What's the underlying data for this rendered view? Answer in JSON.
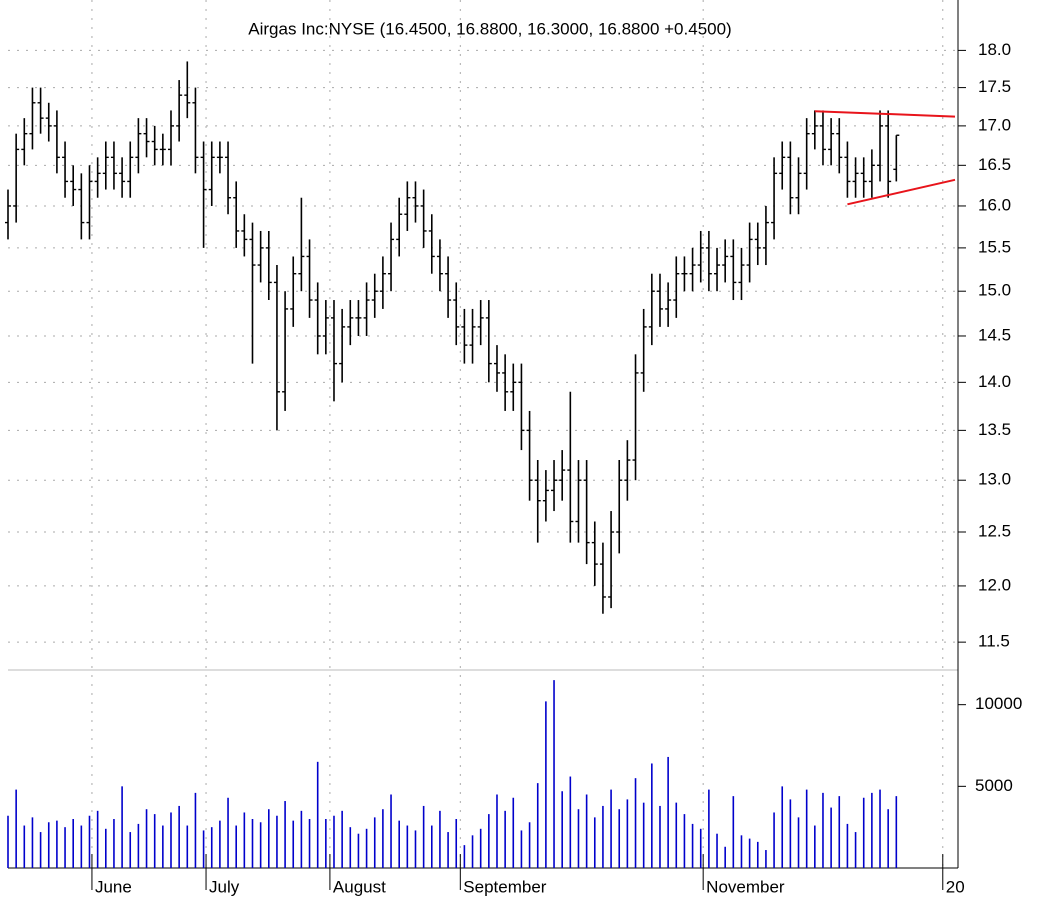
{
  "chart_data": {
    "type": "ohlc",
    "subtitle": "Airgas Inc:NYSE (16.4500, 16.8800, 16.3000, 16.8800 +0.4500)",
    "log_scale": true,
    "grid": true,
    "color": "#000000",
    "xlim": [
      0,
      116.2
    ],
    "xticks": [
      {
        "value": 10.3,
        "label": "June"
      },
      {
        "value": 24.3,
        "label": "July"
      },
      {
        "value": 39.5,
        "label": "August"
      },
      {
        "value": 55.5,
        "label": "September"
      },
      {
        "value": 85.3,
        "label": "November"
      },
      {
        "value": 114.7,
        "label": "20"
      }
    ],
    "ylim": [
      11.26,
      18.7
    ],
    "yticks": [
      {
        "value": 11.5,
        "label": "11.5"
      },
      {
        "value": 12,
        "label": "12.0"
      },
      {
        "value": 12.5,
        "label": "12.5"
      },
      {
        "value": 13,
        "label": "13.0"
      },
      {
        "value": 13.5,
        "label": "13.5"
      },
      {
        "value": 14,
        "label": "14.0"
      },
      {
        "value": 14.5,
        "label": "14.5"
      },
      {
        "value": 15,
        "label": "15.0"
      },
      {
        "value": 15.5,
        "label": "15.5"
      },
      {
        "value": 16,
        "label": "16.0"
      },
      {
        "value": 16.5,
        "label": "16.5"
      },
      {
        "value": 17,
        "label": "17.0"
      },
      {
        "value": 17.5,
        "label": "17.5"
      },
      {
        "value": 18,
        "label": "18.0"
      }
    ],
    "open": [
      15.8,
      16.0,
      16.7,
      16.9,
      17.3,
      17.1,
      17.0,
      16.6,
      16.3,
      16.2,
      15.8,
      16.3,
      16.4,
      16.6,
      16.4,
      16.3,
      16.6,
      16.9,
      16.8,
      16.7,
      16.7,
      17.0,
      17.4,
      17.3,
      16.6,
      16.2,
      16.6,
      16.6,
      16.1,
      15.7,
      15.6,
      15.3,
      15.5,
      15.1,
      13.9,
      14.8,
      15.2,
      15.4,
      14.9,
      14.5,
      14.7,
      14.2,
      14.6,
      14.7,
      14.7,
      14.9,
      15.0,
      15.2,
      15.6,
      15.9,
      16.1,
      16.0,
      15.7,
      15.4,
      15.2,
      14.9,
      14.6,
      14.4,
      14.6,
      14.7,
      14.2,
      14.1,
      13.9,
      14.0,
      13.5,
      13.0,
      12.8,
      12.9,
      13.0,
      13.1,
      12.6,
      13.0,
      12.4,
      12.2,
      11.9,
      12.5,
      13.0,
      13.2,
      14.1,
      14.6,
      15.0,
      14.8,
      14.9,
      15.2,
      15.2,
      15.3,
      15.5,
      15.2,
      15.3,
      15.4,
      15.1,
      15.3,
      15.6,
      15.5,
      15.8,
      16.4,
      16.6,
      16.1,
      16.4,
      16.9,
      17.0,
      16.7,
      16.9,
      16.6,
      16.3,
      16.4,
      16.3,
      16.5,
      17.0,
      16.45
    ],
    "high": [
      16.2,
      16.9,
      17.1,
      17.5,
      17.5,
      17.3,
      17.2,
      16.8,
      16.5,
      16.4,
      16.5,
      16.6,
      16.8,
      16.8,
      16.6,
      16.8,
      17.1,
      17.1,
      17.0,
      16.9,
      17.2,
      17.6,
      17.85,
      17.5,
      16.8,
      16.8,
      16.8,
      16.8,
      16.3,
      15.9,
      15.8,
      15.7,
      15.7,
      15.3,
      15.0,
      15.4,
      16.1,
      15.6,
      15.1,
      14.9,
      14.9,
      14.8,
      14.9,
      14.9,
      15.1,
      15.2,
      15.4,
      15.8,
      16.1,
      16.3,
      16.3,
      16.2,
      15.9,
      15.6,
      15.4,
      15.1,
      14.8,
      14.8,
      14.9,
      14.9,
      14.4,
      14.3,
      14.2,
      14.2,
      13.7,
      13.2,
      13.1,
      13.2,
      13.3,
      13.9,
      13.2,
      13.2,
      12.6,
      12.4,
      12.7,
      13.2,
      13.4,
      14.3,
      14.8,
      15.2,
      15.2,
      15.1,
      15.4,
      15.4,
      15.5,
      15.7,
      15.7,
      15.5,
      15.6,
      15.6,
      15.5,
      15.8,
      15.8,
      16.0,
      16.6,
      16.8,
      16.8,
      16.6,
      17.1,
      17.2,
      17.2,
      17.1,
      17.1,
      16.8,
      16.6,
      16.6,
      16.7,
      17.2,
      17.2,
      16.88
    ],
    "low": [
      15.6,
      15.8,
      16.5,
      16.7,
      16.9,
      16.8,
      16.4,
      16.1,
      16.0,
      15.6,
      15.6,
      16.1,
      16.2,
      16.2,
      16.1,
      16.1,
      16.4,
      16.6,
      16.5,
      16.5,
      16.5,
      16.8,
      17.1,
      16.4,
      15.5,
      16.0,
      16.4,
      15.9,
      15.5,
      15.4,
      14.2,
      15.1,
      14.9,
      13.5,
      13.7,
      14.6,
      15.0,
      14.7,
      14.3,
      14.3,
      13.8,
      14.0,
      14.4,
      14.5,
      14.5,
      14.7,
      14.8,
      15.0,
      15.4,
      15.7,
      15.8,
      15.5,
      15.2,
      15.0,
      14.7,
      14.4,
      14.2,
      14.2,
      14.4,
      14.0,
      13.9,
      13.7,
      13.7,
      13.3,
      12.8,
      12.4,
      12.6,
      12.7,
      12.8,
      12.4,
      12.4,
      12.2,
      12.0,
      11.75,
      11.8,
      12.3,
      12.8,
      13.0,
      13.9,
      14.4,
      14.6,
      14.6,
      14.7,
      15.0,
      15.0,
      15.1,
      15.0,
      15.0,
      15.1,
      14.9,
      14.9,
      15.1,
      15.3,
      15.3,
      15.6,
      16.2,
      15.9,
      15.9,
      16.2,
      16.7,
      16.5,
      16.5,
      16.4,
      16.1,
      16.1,
      16.1,
      16.1,
      16.3,
      16.1,
      16.3
    ],
    "close": [
      16.0,
      16.7,
      16.9,
      17.3,
      17.1,
      17.0,
      16.6,
      16.3,
      16.2,
      15.8,
      16.3,
      16.4,
      16.6,
      16.4,
      16.3,
      16.6,
      16.9,
      16.8,
      16.7,
      16.7,
      17.0,
      17.4,
      17.3,
      16.6,
      16.2,
      16.6,
      16.6,
      16.1,
      15.7,
      15.6,
      15.3,
      15.5,
      15.1,
      13.9,
      14.8,
      15.2,
      15.4,
      14.9,
      14.5,
      14.7,
      14.2,
      14.6,
      14.7,
      14.7,
      14.9,
      15.0,
      15.2,
      15.6,
      15.9,
      16.1,
      16.0,
      15.7,
      15.4,
      15.2,
      14.9,
      14.6,
      14.4,
      14.6,
      14.7,
      14.2,
      14.1,
      13.9,
      14.0,
      13.5,
      13.0,
      12.8,
      12.9,
      13.0,
      13.1,
      12.6,
      13.0,
      12.4,
      12.2,
      11.9,
      12.5,
      13.0,
      13.2,
      14.1,
      14.6,
      15.0,
      14.8,
      14.9,
      15.2,
      15.2,
      15.3,
      15.5,
      15.2,
      15.3,
      15.4,
      15.1,
      15.3,
      15.6,
      15.5,
      15.8,
      16.4,
      16.6,
      16.1,
      16.4,
      16.9,
      17.0,
      16.7,
      16.9,
      16.6,
      16.3,
      16.4,
      16.3,
      16.5,
      17.0,
      16.3,
      16.88
    ],
    "volume": [
      3200,
      4800,
      2600,
      3100,
      2200,
      2800,
      2900,
      2500,
      3000,
      2600,
      3200,
      3500,
      2400,
      3000,
      5000,
      2200,
      2700,
      3600,
      3300,
      2600,
      3400,
      3800,
      2600,
      4600,
      2300,
      2500,
      2900,
      4300,
      2600,
      3400,
      3000,
      2800,
      3600,
      3200,
      4100,
      2900,
      3500,
      3000,
      6500,
      3000,
      3200,
      3500,
      2500,
      2100,
      2400,
      3100,
      3600,
      4500,
      2900,
      2600,
      2300,
      3800,
      2600,
      3500,
      2200,
      3000,
      1400,
      2000,
      2400,
      3300,
      4500,
      3500,
      4300,
      2300,
      2800,
      5200,
      10200,
      11500,
      4700,
      5600,
      3600,
      4500,
      3100,
      3800,
      4800,
      3600,
      4200,
      5500,
      4000,
      6400,
      3800,
      6800,
      4000,
      3300,
      2700,
      2400,
      4800,
      2100,
      1300,
      4400,
      2000,
      1800,
      1600,
      1100,
      3400,
      5000,
      4200,
      3100,
      4800,
      2600,
      4600,
      3700,
      4400,
      2700,
      2200,
      4300,
      4600,
      4800,
      3600,
      4400
    ],
    "volume_color": "#0000cc",
    "volume_ylim": [
      0,
      12000
    ],
    "volume_yticks": [
      5000,
      10000
    ],
    "trendlines": [
      {
        "color": "#e8141b",
        "x": [
          99,
          116.2
        ],
        "y": [
          17.19,
          17.12
        ]
      },
      {
        "color": "#e8141b",
        "x": [
          103,
          116.2
        ],
        "y": [
          16.02,
          16.32
        ]
      }
    ]
  }
}
